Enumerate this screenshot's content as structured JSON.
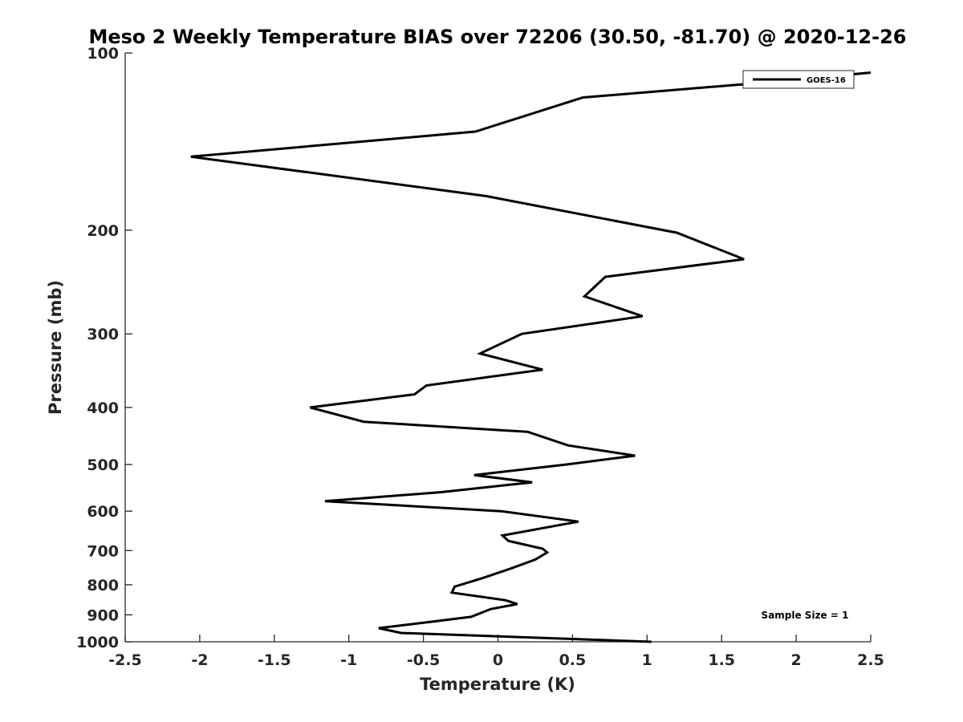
{
  "chart_data": {
    "type": "line",
    "title": "Meso 2 Weekly Temperature BIAS over 72206 (30.50, -81.70) @ 2020-12-26",
    "xlabel": "Temperature (K)",
    "ylabel": "Pressure (mb)",
    "xlim": [
      -2.5,
      2.5
    ],
    "ylim": [
      100,
      1000
    ],
    "y_scale": "log",
    "y_reversed": true,
    "x_ticks": [
      -2.5,
      -2,
      -1.5,
      -1,
      -0.5,
      0,
      0.5,
      1,
      1.5,
      2,
      2.5
    ],
    "x_tick_labels": [
      "-2.5",
      "-2",
      "-1.5",
      "-1",
      "-0.5",
      "0",
      "0.5",
      "1",
      "1.5",
      "2",
      "2.5"
    ],
    "y_ticks": [
      100,
      200,
      300,
      400,
      500,
      600,
      700,
      800,
      900,
      1000
    ],
    "y_tick_labels": [
      "100",
      "200",
      "300",
      "400",
      "500",
      "600",
      "700",
      "800",
      "900",
      "1000"
    ],
    "grid": false,
    "legend_position": "top-right",
    "annotation": "Sample Size = 1",
    "line_color": "#000000",
    "series": [
      {
        "name": "GOES-16",
        "points": [
          {
            "x": 1.03,
            "y": 1000
          },
          {
            "x": -0.65,
            "y": 966
          },
          {
            "x": -0.8,
            "y": 948
          },
          {
            "x": -0.45,
            "y": 925
          },
          {
            "x": -0.18,
            "y": 907
          },
          {
            "x": -0.05,
            "y": 880
          },
          {
            "x": 0.13,
            "y": 863
          },
          {
            "x": 0.05,
            "y": 850
          },
          {
            "x": -0.31,
            "y": 825
          },
          {
            "x": -0.29,
            "y": 806
          },
          {
            "x": -0.1,
            "y": 779
          },
          {
            "x": 0.08,
            "y": 752
          },
          {
            "x": 0.25,
            "y": 725
          },
          {
            "x": 0.33,
            "y": 705
          },
          {
            "x": 0.3,
            "y": 695
          },
          {
            "x": 0.07,
            "y": 674
          },
          {
            "x": 0.03,
            "y": 660
          },
          {
            "x": 0.54,
            "y": 625
          },
          {
            "x": 0.02,
            "y": 600
          },
          {
            "x": -1.16,
            "y": 577
          },
          {
            "x": -0.38,
            "y": 557
          },
          {
            "x": 0.23,
            "y": 536
          },
          {
            "x": -0.16,
            "y": 521
          },
          {
            "x": 0.46,
            "y": 500
          },
          {
            "x": 0.92,
            "y": 483
          },
          {
            "x": 0.47,
            "y": 464
          },
          {
            "x": 0.2,
            "y": 440
          },
          {
            "x": -0.9,
            "y": 423
          },
          {
            "x": -1.26,
            "y": 400
          },
          {
            "x": -0.56,
            "y": 380
          },
          {
            "x": -0.48,
            "y": 367
          },
          {
            "x": 0.3,
            "y": 345
          },
          {
            "x": -0.12,
            "y": 324
          },
          {
            "x": 0.16,
            "y": 300
          },
          {
            "x": 0.97,
            "y": 280
          },
          {
            "x": 0.58,
            "y": 259
          },
          {
            "x": 0.72,
            "y": 240
          },
          {
            "x": 1.65,
            "y": 224
          },
          {
            "x": 1.2,
            "y": 202
          },
          {
            "x": -0.08,
            "y": 175
          },
          {
            "x": -2.06,
            "y": 150
          },
          {
            "x": -0.15,
            "y": 136
          },
          {
            "x": 0.57,
            "y": 119
          },
          {
            "x": 1.65,
            "y": 113
          },
          {
            "x": 2.5,
            "y": 108
          }
        ]
      }
    ]
  }
}
